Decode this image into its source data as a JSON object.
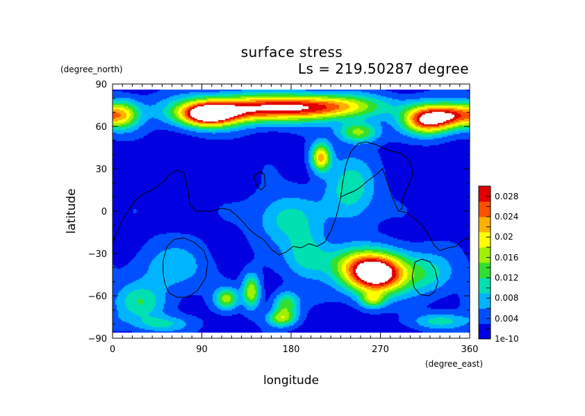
{
  "chart_data": {
    "type": "heatmap",
    "title": "surface stress",
    "subtitle": "Ls = 219.50287 degree",
    "xlabel": "longitude",
    "ylabel": "latitude",
    "x_unit": "(degree_east)",
    "y_unit": "(degree_north)",
    "xlim": [
      0,
      360
    ],
    "ylim": [
      -90,
      90
    ],
    "x_ticks": [
      "0",
      "90",
      "180",
      "270",
      "360"
    ],
    "y_ticks": [
      "90",
      "60",
      "30",
      "0",
      "−30",
      "−60",
      "−90"
    ],
    "colorbar": {
      "range": [
        0,
        0.03
      ],
      "labels": [
        "0.028",
        "0.024",
        "0.02",
        "0.016",
        "0.012",
        "0.008",
        "0.004",
        "1e-10"
      ],
      "colormap": [
        "#0000e0",
        "#0050ff",
        "#00b4ff",
        "#00e0b0",
        "#30e030",
        "#a0f000",
        "#ffff00",
        "#ffb000",
        "#ff5000",
        "#e00000"
      ]
    },
    "hotspots": [
      {
        "lon": 265,
        "lat": -46,
        "peak": 0.031,
        "slon": 22,
        "slat": 9
      },
      {
        "lon": 255,
        "lat": -36,
        "peak": 0.012,
        "slon": 30,
        "slat": 8
      },
      {
        "lon": 318,
        "lat": 65,
        "peak": 0.03,
        "slon": 17,
        "slat": 7
      },
      {
        "lon": 345,
        "lat": 68,
        "peak": 0.018,
        "slon": 14,
        "slat": 6
      },
      {
        "lon": 95,
        "lat": 68,
        "peak": 0.026,
        "slon": 20,
        "slat": 6
      },
      {
        "lon": 135,
        "lat": 72,
        "peak": 0.02,
        "slon": 50,
        "slat": 7
      },
      {
        "lon": 190,
        "lat": 74,
        "peak": 0.014,
        "slon": 45,
        "slat": 6
      },
      {
        "lon": 235,
        "lat": 74,
        "peak": 0.009,
        "slon": 35,
        "slat": 6
      },
      {
        "lon": 10,
        "lat": 68,
        "peak": 0.016,
        "slon": 12,
        "slat": 7
      },
      {
        "lon": 210,
        "lat": 38,
        "peak": 0.02,
        "slon": 7,
        "slat": 7
      },
      {
        "lon": 248,
        "lat": 56,
        "peak": 0.014,
        "slon": 14,
        "slat": 5
      },
      {
        "lon": 140,
        "lat": -57,
        "peak": 0.016,
        "slon": 6,
        "slat": 8
      },
      {
        "lon": 115,
        "lat": -62,
        "peak": 0.014,
        "slon": 8,
        "slat": 5
      },
      {
        "lon": 175,
        "lat": -66,
        "peak": 0.012,
        "slon": 9,
        "slat": 6
      },
      {
        "lon": 170,
        "lat": -76,
        "peak": 0.013,
        "slon": 10,
        "slat": 4
      },
      {
        "lon": 262,
        "lat": -63,
        "peak": 0.012,
        "slon": 9,
        "slat": 4
      },
      {
        "lon": 28,
        "lat": -65,
        "peak": 0.009,
        "slon": 18,
        "slat": 9
      },
      {
        "lon": 240,
        "lat": 15,
        "peak": 0.009,
        "slon": 18,
        "slat": 16
      },
      {
        "lon": 175,
        "lat": -5,
        "peak": 0.008,
        "slon": 22,
        "slat": 12
      },
      {
        "lon": 195,
        "lat": -30,
        "peak": 0.008,
        "slon": 15,
        "slat": 12
      },
      {
        "lon": 320,
        "lat": -45,
        "peak": 0.007,
        "slon": 18,
        "slat": 10
      },
      {
        "lon": 60,
        "lat": -40,
        "peak": 0.006,
        "slon": 25,
        "slat": 12
      },
      {
        "lon": 330,
        "lat": -78,
        "peak": 0.008,
        "slon": 20,
        "slat": 4
      },
      {
        "lon": 50,
        "lat": -80,
        "peak": 0.007,
        "slon": 20,
        "slat": 4
      }
    ],
    "contours": [
      [
        [
          0,
          -22
        ],
        [
          10,
          -6
        ],
        [
          20,
          5
        ],
        [
          30,
          12
        ],
        [
          40,
          15
        ],
        [
          50,
          20
        ],
        [
          58,
          26
        ],
        [
          65,
          29
        ],
        [
          72,
          27
        ],
        [
          76,
          15
        ],
        [
          78,
          5
        ],
        [
          84,
          0
        ],
        [
          100,
          0
        ],
        [
          110,
          2
        ],
        [
          118,
          1
        ],
        [
          125,
          -3
        ],
        [
          132,
          -8
        ],
        [
          138,
          -13
        ],
        [
          145,
          -17
        ],
        [
          152,
          -20
        ],
        [
          160,
          -27
        ],
        [
          168,
          -31
        ],
        [
          175,
          -29
        ],
        [
          182,
          -25
        ],
        [
          190,
          -26
        ],
        [
          198,
          -23
        ],
        [
          206,
          -25
        ],
        [
          214,
          -22
        ],
        [
          220,
          -14
        ],
        [
          224,
          -7
        ],
        [
          227,
          0
        ],
        [
          230,
          10
        ],
        [
          232,
          20
        ],
        [
          235,
          32
        ],
        [
          240,
          42
        ],
        [
          248,
          48
        ],
        [
          256,
          49
        ],
        [
          266,
          47
        ],
        [
          278,
          43
        ],
        [
          290,
          41
        ],
        [
          296,
          38
        ],
        [
          300,
          35
        ],
        [
          303,
          26
        ],
        [
          296,
          15
        ],
        [
          292,
          8
        ],
        [
          292,
          2
        ],
        [
          288,
          0
        ],
        [
          282,
          10
        ],
        [
          277,
          21
        ],
        [
          272,
          30
        ],
        [
          266,
          26
        ],
        [
          258,
          22
        ],
        [
          250,
          17
        ],
        [
          243,
          14
        ],
        [
          236,
          12
        ],
        [
          230,
          10
        ]
      ],
      [
        [
          288,
          0
        ],
        [
          297,
          -1
        ],
        [
          306,
          -6
        ],
        [
          312,
          -10
        ],
        [
          318,
          -16
        ],
        [
          324,
          -24
        ],
        [
          330,
          -28
        ],
        [
          338,
          -26
        ],
        [
          346,
          -25
        ],
        [
          352,
          -21
        ],
        [
          360,
          -18
        ]
      ],
      [
        [
          143,
          25
        ],
        [
          149,
          28
        ],
        [
          153,
          26
        ],
        [
          154,
          18
        ],
        [
          150,
          15
        ],
        [
          146,
          17
        ],
        [
          143,
          23
        ],
        [
          143,
          25
        ]
      ],
      [
        [
          55,
          -25
        ],
        [
          62,
          -20
        ],
        [
          72,
          -19
        ],
        [
          82,
          -22
        ],
        [
          92,
          -28
        ],
        [
          96,
          -36
        ],
        [
          94,
          -47
        ],
        [
          86,
          -56
        ],
        [
          76,
          -61
        ],
        [
          65,
          -61
        ],
        [
          57,
          -58
        ],
        [
          53,
          -52
        ],
        [
          51,
          -44
        ],
        [
          51,
          -35
        ],
        [
          55,
          -25
        ]
      ],
      [
        [
          305,
          -36
        ],
        [
          312,
          -34
        ],
        [
          320,
          -36
        ],
        [
          325,
          -41
        ],
        [
          328,
          -50
        ],
        [
          325,
          -57
        ],
        [
          319,
          -60
        ],
        [
          310,
          -59
        ],
        [
          304,
          -54
        ],
        [
          302,
          -46
        ],
        [
          305,
          -36
        ]
      ]
    ]
  }
}
